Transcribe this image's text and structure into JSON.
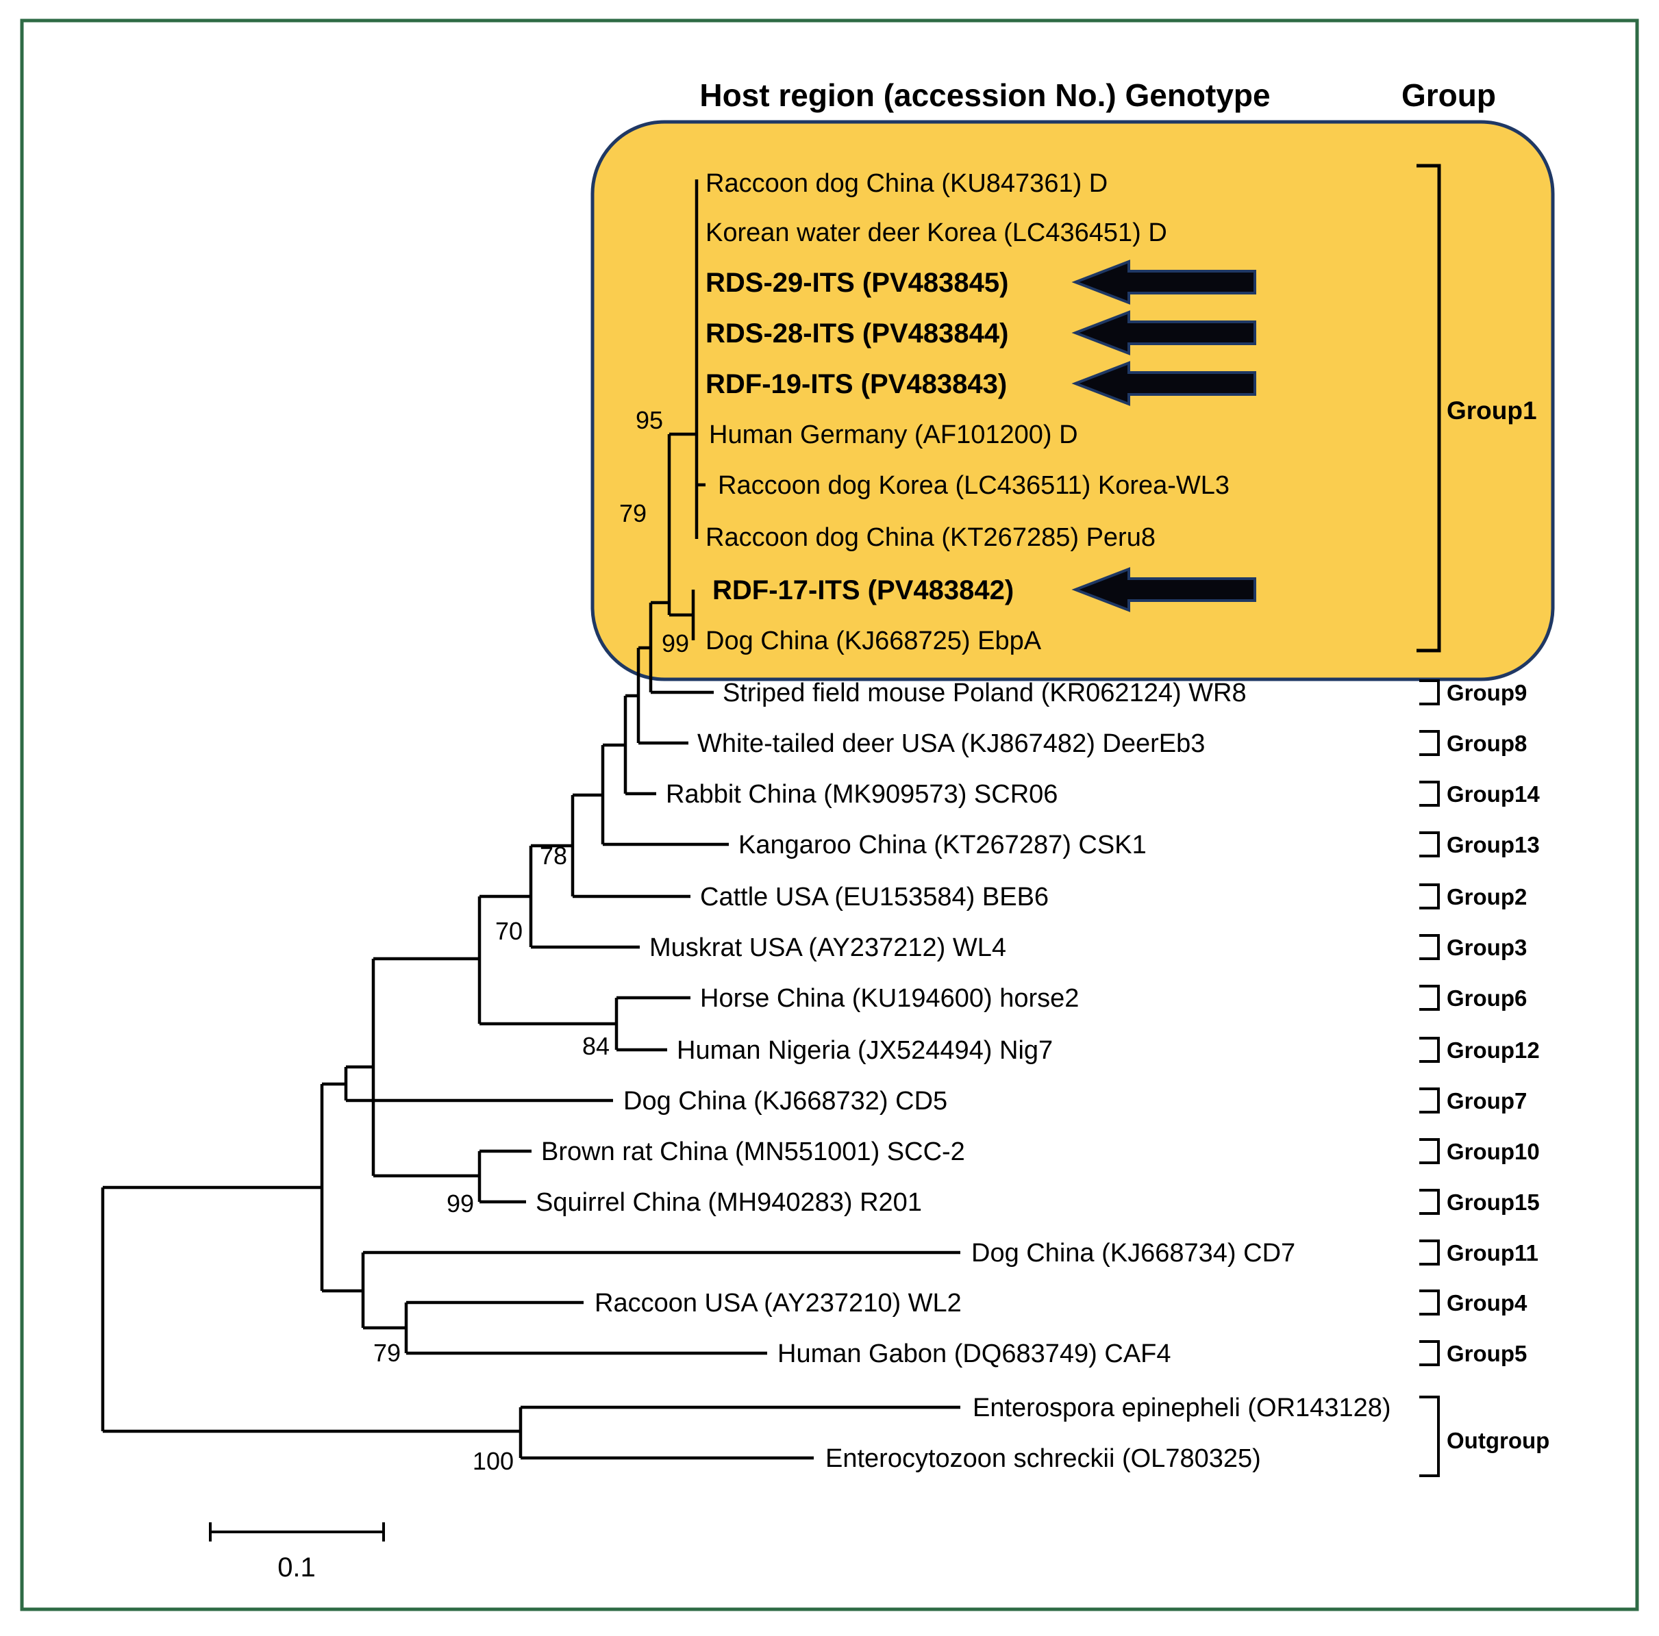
{
  "header": {
    "columns_title": "Host region (accession No.) Genotype",
    "group_title": "Group"
  },
  "taxa": [
    {
      "label": "Raccoon dog China (KU847361) D",
      "bold": false,
      "arrow": false,
      "group": null
    },
    {
      "label": "Korean water deer Korea (LC436451) D",
      "bold": false,
      "arrow": false,
      "group": null
    },
    {
      "label": "RDS-29-ITS (PV483845)",
      "bold": true,
      "arrow": true,
      "group": null
    },
    {
      "label": "RDS-28-ITS (PV483844)",
      "bold": true,
      "arrow": true,
      "group": null
    },
    {
      "label": "RDF-19-ITS (PV483843)",
      "bold": true,
      "arrow": true,
      "group": null
    },
    {
      "label": "Human Germany (AF101200) D",
      "bold": false,
      "arrow": false,
      "group": null
    },
    {
      "label": "Raccoon dog Korea (LC436511) Korea-WL3",
      "bold": false,
      "arrow": false,
      "group": null
    },
    {
      "label": "Raccoon dog China (KT267285) Peru8",
      "bold": false,
      "arrow": false,
      "group": null
    },
    {
      "label": "RDF-17-ITS (PV483842)",
      "bold": true,
      "arrow": true,
      "group": null
    },
    {
      "label": "Dog China (KJ668725) EbpA",
      "bold": false,
      "arrow": false,
      "group": null
    },
    {
      "label": "Striped field mouse Poland (KR062124) WR8",
      "bold": false,
      "arrow": false,
      "group": "Group9"
    },
    {
      "label": "White-tailed deer USA (KJ867482) DeerEb3",
      "bold": false,
      "arrow": false,
      "group": "Group8"
    },
    {
      "label": "Rabbit China (MK909573) SCR06",
      "bold": false,
      "arrow": false,
      "group": "Group14"
    },
    {
      "label": "Kangaroo China (KT267287) CSK1",
      "bold": false,
      "arrow": false,
      "group": "Group13"
    },
    {
      "label": "Cattle USA (EU153584) BEB6",
      "bold": false,
      "arrow": false,
      "group": "Group2"
    },
    {
      "label": "Muskrat USA (AY237212) WL4",
      "bold": false,
      "arrow": false,
      "group": "Group3"
    },
    {
      "label": "Horse China (KU194600) horse2",
      "bold": false,
      "arrow": false,
      "group": "Group6"
    },
    {
      "label": "Human Nigeria (JX524494) Nig7",
      "bold": false,
      "arrow": false,
      "group": "Group12"
    },
    {
      "label": "Dog China (KJ668732) CD5",
      "bold": false,
      "arrow": false,
      "group": "Group7"
    },
    {
      "label": "Brown rat China (MN551001) SCC-2",
      "bold": false,
      "arrow": false,
      "group": "Group10"
    },
    {
      "label": "Squirrel China (MH940283) R201",
      "bold": false,
      "arrow": false,
      "group": "Group15"
    },
    {
      "label": "Dog China (KJ668734) CD7",
      "bold": false,
      "arrow": false,
      "group": "Group11"
    },
    {
      "label": "Raccoon USA (AY237210) WL2",
      "bold": false,
      "arrow": false,
      "group": "Group4"
    },
    {
      "label": "Human Gabon (DQ683749) CAF4",
      "bold": false,
      "arrow": false,
      "group": "Group5"
    },
    {
      "label": "Enterospora epinepheli (OR143128)",
      "bold": false,
      "arrow": false,
      "group": null
    },
    {
      "label": "Enterocytozoon schreckii (OL780325)",
      "bold": false,
      "arrow": false,
      "group": null
    }
  ],
  "clade_labels": {
    "group1": "Group1",
    "outgroup": "Outgroup"
  },
  "bootstrap": [
    {
      "id": "bs95",
      "value": "95"
    },
    {
      "id": "bs79a",
      "value": "79"
    },
    {
      "id": "bs99a",
      "value": "99"
    },
    {
      "id": "bs78",
      "value": "78"
    },
    {
      "id": "bs70",
      "value": "70"
    },
    {
      "id": "bs84",
      "value": "84"
    },
    {
      "id": "bs99b",
      "value": "99"
    },
    {
      "id": "bs79b",
      "value": "79"
    },
    {
      "id": "bs100",
      "value": "100"
    }
  ],
  "scale_bar": {
    "label": "0.1"
  },
  "colors": {
    "highlight_box_fill": "#FACD4F",
    "highlight_box_border": "#1F3864",
    "page_border": "#2E6B45",
    "tree_line": "#000000",
    "arrow_fill": "#06070E",
    "arrow_outline": "#1F3864"
  }
}
